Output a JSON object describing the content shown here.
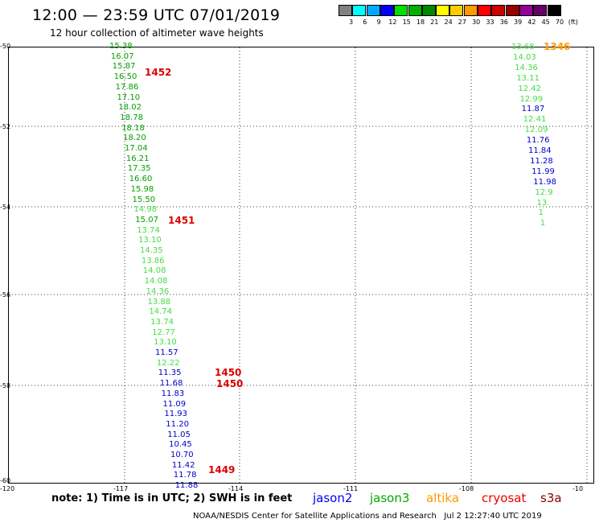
{
  "header": {
    "title": "12:00 — 23:59 UTC 07/01/2019",
    "subtitle": "12 hour collection of altimeter wave heights"
  },
  "legend": {
    "unit": "(ft)",
    "bins": [
      {
        "label": "3",
        "color": "#808080"
      },
      {
        "label": "6",
        "color": "#00ffff"
      },
      {
        "label": "9",
        "color": "#00aaff"
      },
      {
        "label": "12",
        "color": "#0000ff"
      },
      {
        "label": "15",
        "color": "#00e000"
      },
      {
        "label": "18",
        "color": "#00b000"
      },
      {
        "label": "21",
        "color": "#008800"
      },
      {
        "label": "24",
        "color": "#ffff00"
      },
      {
        "label": "27",
        "color": "#ffcc00"
      },
      {
        "label": "30",
        "color": "#ff9900"
      },
      {
        "label": "33",
        "color": "#ff0000"
      },
      {
        "label": "36",
        "color": "#cc0000"
      },
      {
        "label": "39",
        "color": "#990000"
      },
      {
        "label": "42",
        "color": "#990099"
      },
      {
        "label": "45",
        "color": "#660066"
      },
      {
        "label": "70",
        "color": "#000000"
      }
    ]
  },
  "axes": {
    "lat_labels": [
      "-50",
      "-52",
      "-54",
      "-56",
      "-58",
      "-60"
    ],
    "lon_labels": [
      "-120",
      "-117",
      "-114",
      "-111",
      "-108",
      "-10"
    ]
  },
  "tracks": [
    {
      "x": 136,
      "y0": 52,
      "dy": 12.7,
      "values": [
        {
          "v": "15.38",
          "c": "#00a000"
        },
        {
          "v": "16.07",
          "c": "#00a000"
        },
        {
          "v": "15.87",
          "c": "#00a000"
        },
        {
          "v": "16.50",
          "c": "#00a000"
        },
        {
          "v": "17.86",
          "c": "#00a000"
        },
        {
          "v": "17.10",
          "c": "#00a000"
        },
        {
          "v": "18.02",
          "c": "#00a000"
        },
        {
          "v": "18.78",
          "c": "#00a000"
        },
        {
          "v": "18.18",
          "c": "#00a000"
        },
        {
          "v": "18.20",
          "c": "#00a000"
        },
        {
          "v": "17.04",
          "c": "#00a000"
        },
        {
          "v": "16.21",
          "c": "#00a000"
        },
        {
          "v": "17.35",
          "c": "#00a000"
        },
        {
          "v": "16.60",
          "c": "#00a000"
        },
        {
          "v": "15.98",
          "c": "#00a000"
        },
        {
          "v": "15.50",
          "c": "#00a000"
        },
        {
          "v": "14.98",
          "c": "#44dd44"
        },
        {
          "v": "15.07",
          "c": "#00a000"
        },
        {
          "v": "13.74",
          "c": "#44dd44"
        },
        {
          "v": "13.10",
          "c": "#44dd44"
        },
        {
          "v": "14.35",
          "c": "#44dd44"
        },
        {
          "v": "13.86",
          "c": "#44dd44"
        },
        {
          "v": "14.08",
          "c": "#44dd44"
        },
        {
          "v": "14.08",
          "c": "#44dd44"
        },
        {
          "v": "14.36",
          "c": "#44dd44"
        },
        {
          "v": "13.88",
          "c": "#44dd44"
        },
        {
          "v": "14.74",
          "c": "#44dd44"
        },
        {
          "v": "13.74",
          "c": "#44dd44"
        },
        {
          "v": "12.77",
          "c": "#44dd44"
        },
        {
          "v": "13.10",
          "c": "#44dd44"
        },
        {
          "v": "11.57",
          "c": "#0000cc"
        },
        {
          "v": "12.22",
          "c": "#44dd44"
        },
        {
          "v": "11.35",
          "c": "#0000cc"
        },
        {
          "v": "11.68",
          "c": "#0000cc"
        },
        {
          "v": "11.83",
          "c": "#0000cc"
        },
        {
          "v": "11.09",
          "c": "#0000cc"
        },
        {
          "v": "11.93",
          "c": "#0000cc"
        },
        {
          "v": "11.20",
          "c": "#0000cc"
        },
        {
          "v": "11.05",
          "c": "#0000cc"
        },
        {
          "v": "10.45",
          "c": "#0000cc"
        },
        {
          "v": "10.70",
          "c": "#0000cc"
        },
        {
          "v": "11.42",
          "c": "#0000cc"
        },
        {
          "v": "11.78",
          "c": "#0000cc"
        },
        {
          "v": "11.88",
          "c": "#0000cc"
        }
      ]
    },
    {
      "x": 636,
      "y0": 53,
      "dy": 12.9,
      "values": [
        {
          "v": "13.68",
          "c": "#44dd44"
        },
        {
          "v": "14.03",
          "c": "#44dd44"
        },
        {
          "v": "14.36",
          "c": "#44dd44"
        },
        {
          "v": "13.11",
          "c": "#44dd44"
        },
        {
          "v": "12.42",
          "c": "#44dd44"
        },
        {
          "v": "12.99",
          "c": "#44dd44"
        },
        {
          "v": "11.87",
          "c": "#0000cc"
        },
        {
          "v": "12.41",
          "c": "#44dd44"
        },
        {
          "v": "12.09",
          "c": "#44dd44"
        },
        {
          "v": "11.76",
          "c": "#0000cc"
        },
        {
          "v": "11.84",
          "c": "#0000cc"
        },
        {
          "v": "11.28",
          "c": "#0000cc"
        },
        {
          "v": "11.99",
          "c": "#0000cc"
        },
        {
          "v": "11.98",
          "c": "#0000cc"
        },
        {
          "v": "12.9",
          "c": "#44dd44"
        },
        {
          "v": "13.",
          "c": "#44dd44"
        },
        {
          "v": "1",
          "c": "#44dd44"
        },
        {
          "v": "1",
          "c": "#44dd44"
        }
      ]
    }
  ],
  "time_labels": [
    {
      "text": "1452",
      "color": "#dd0000"
    },
    {
      "text": "1451",
      "color": "#dd0000"
    },
    {
      "text": "1450",
      "color": "#dd0000"
    },
    {
      "text": "1450",
      "color": "#dd0000"
    },
    {
      "text": "1449",
      "color": "#dd0000"
    },
    {
      "text": "1346",
      "color": "#ff9900"
    }
  ],
  "footer": {
    "note": "note:  1) Time is in UTC;  2) SWH is in feet",
    "satellites": [
      {
        "name": "jason2",
        "color": "#0000ee"
      },
      {
        "name": "jason3",
        "color": "#00aa00"
      },
      {
        "name": "altika",
        "color": "#ff9900"
      },
      {
        "name": "cryosat",
        "color": "#ee0000"
      },
      {
        "name": "s3a",
        "color": "#880000"
      }
    ],
    "credit": "NOAA/NESDIS Center for Satellite Applications and Research",
    "timestamp": "Jul  2 12:27:40 UTC 2019"
  }
}
